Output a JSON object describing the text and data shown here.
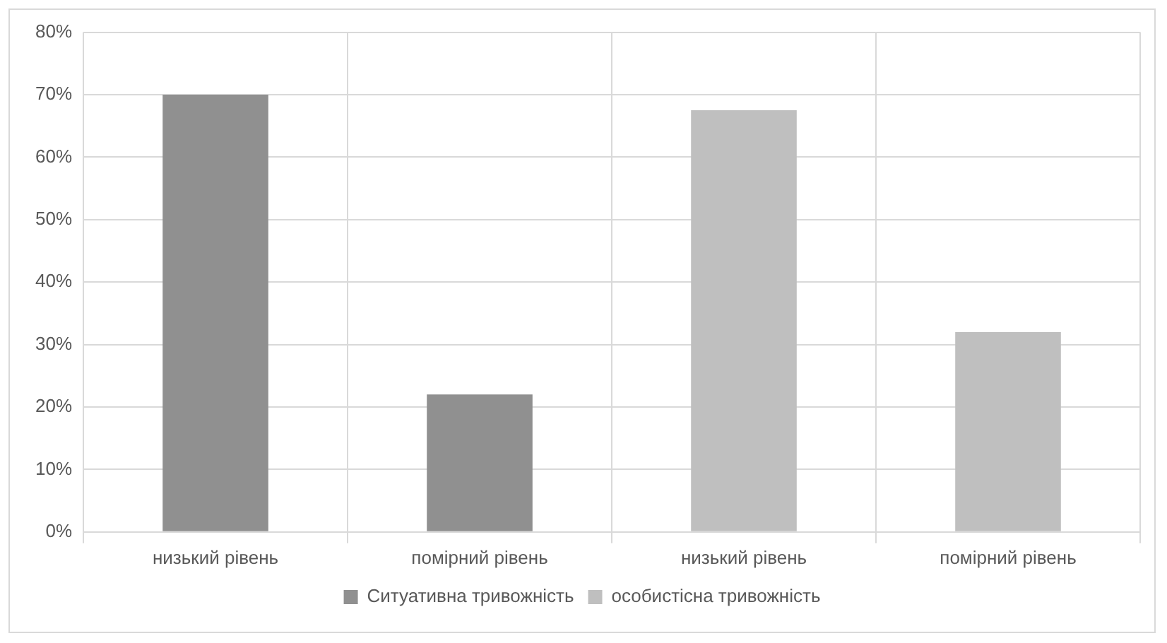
{
  "chart_data": {
    "type": "bar",
    "categories": [
      "низький рівень",
      "помірний рівень",
      "низький рівень",
      "помірний рівень"
    ],
    "series": [
      {
        "name": "Ситуативна тривожність",
        "color": "#909090",
        "values": [
          70,
          22,
          null,
          null
        ]
      },
      {
        "name": "особистісна тривожність",
        "color": "#bfbfbf",
        "values": [
          null,
          null,
          67.5,
          32
        ]
      }
    ],
    "ylim": [
      0,
      80
    ],
    "yticks": [
      {
        "value": 0,
        "label": "0%"
      },
      {
        "value": 10,
        "label": "10%"
      },
      {
        "value": 20,
        "label": "20%"
      },
      {
        "value": 30,
        "label": "30%"
      },
      {
        "value": 40,
        "label": "40%"
      },
      {
        "value": 50,
        "label": "50%"
      },
      {
        "value": 60,
        "label": "60%"
      },
      {
        "value": 70,
        "label": "70%"
      },
      {
        "value": 80,
        "label": "80%"
      }
    ],
    "grid": true,
    "legend": "bottom"
  }
}
